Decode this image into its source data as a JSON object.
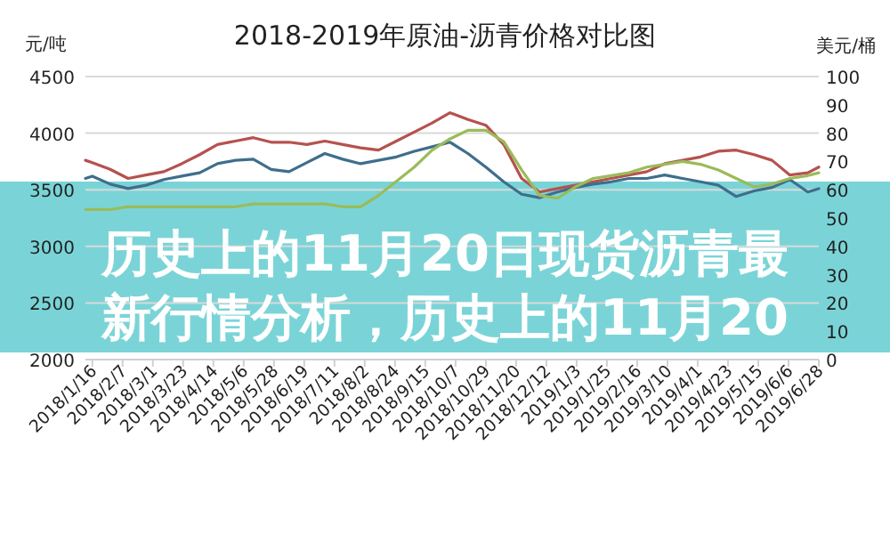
{
  "chart_data": {
    "type": "line",
    "title": "2018-2019年原油-沥青价格对比图",
    "ylabel": "元/吨",
    "y2label": "美元/桶",
    "annotations": [
      "历史上的11月20日现货沥青最新行情分析，历史上的11月20"
    ],
    "x": [
      "2018-01-11",
      "2018-01-16",
      "2018-01-29",
      "2018-02-11",
      "2018-02-24",
      "2018-03-09",
      "2018-03-22",
      "2018-04-04",
      "2018-04-17",
      "2018-04-30",
      "2018-05-13",
      "2018-05-26",
      "2018-06-08",
      "2018-06-21",
      "2018-07-04",
      "2018-07-17",
      "2018-07-30",
      "2018-08-12",
      "2018-08-25",
      "2018-09-07",
      "2018-09-20",
      "2018-10-03",
      "2018-10-16",
      "2018-10-29",
      "2018-11-11",
      "2018-11-24",
      "2018-12-07",
      "2018-12-20",
      "2019-01-02",
      "2019-01-15",
      "2019-01-28",
      "2019-02-10",
      "2019-02-23",
      "2019-03-08",
      "2019-03-21",
      "2019-04-03",
      "2019-04-16",
      "2019-04-29",
      "2019-05-12",
      "2019-05-25",
      "2019-06-07",
      "2019-06-20",
      "2019-06-28"
    ],
    "series": [
      {
        "color": "#b5524f",
        "values": [
          3760,
          3740,
          3680,
          3600,
          3630,
          3660,
          3730,
          3810,
          3900,
          3930,
          3960,
          3920,
          3920,
          3900,
          3930,
          3900,
          3870,
          3850,
          3930,
          4010,
          4090,
          4180,
          4120,
          4070,
          3900,
          3600,
          3480,
          3510,
          3540,
          3570,
          3600,
          3630,
          3660,
          3730,
          3760,
          3790,
          3840,
          3850,
          3810,
          3760,
          3630,
          3650,
          3700
        ]
      },
      {
        "color": "#3f6e8c",
        "values": [
          3600,
          3620,
          3550,
          3510,
          3540,
          3590,
          3620,
          3650,
          3730,
          3760,
          3770,
          3680,
          3660,
          3740,
          3820,
          3770,
          3730,
          3760,
          3790,
          3840,
          3880,
          3920,
          3820,
          3700,
          3570,
          3460,
          3430,
          3480,
          3520,
          3550,
          3570,
          3600,
          3600,
          3630,
          3600,
          3570,
          3540,
          3440,
          3490,
          3520,
          3590,
          3480,
          3510
        ]
      },
      {
        "color": "#9bbb59",
        "axis": "y2",
        "values": [
          53,
          53,
          53,
          54,
          54,
          54,
          54,
          54,
          54,
          54,
          55,
          55,
          55,
          55,
          55,
          54,
          54,
          58,
          63,
          68,
          74,
          78,
          81,
          81,
          77,
          67,
          58,
          57,
          61,
          64,
          65,
          66,
          68,
          69,
          70,
          69,
          67,
          64,
          61,
          62,
          64,
          65,
          66
        ]
      }
    ],
    "xlim": [
      "2018-01-11",
      "2019-06-28"
    ],
    "xticks": [
      {
        "value": "2018-01-16",
        "label": "2018/1/16"
      },
      {
        "value": "2018-02-07",
        "label": "2018/2/7"
      },
      {
        "value": "2018-03-01",
        "label": "2018/3/1"
      },
      {
        "value": "2018-03-23",
        "label": "2018/3/23"
      },
      {
        "value": "2018-04-14",
        "label": "2018/4/14"
      },
      {
        "value": "2018-05-06",
        "label": "2018/5/6"
      },
      {
        "value": "2018-05-28",
        "label": "2018/5/28"
      },
      {
        "value": "2018-06-19",
        "label": "2018/6/19"
      },
      {
        "value": "2018-07-11",
        "label": "2018/7/11"
      },
      {
        "value": "2018-08-02",
        "label": "2018/8/2"
      },
      {
        "value": "2018-08-24",
        "label": "2018/8/24"
      },
      {
        "value": "2018-09-15",
        "label": "2018/9/15"
      },
      {
        "value": "2018-10-07",
        "label": "2018/10/7"
      },
      {
        "value": "2018-10-29",
        "label": "2018/10/29"
      },
      {
        "value": "2018-11-20",
        "label": "2018/11/20"
      },
      {
        "value": "2018-12-12",
        "label": "2018/12/12"
      },
      {
        "value": "2019-01-03",
        "label": "2019/1/3"
      },
      {
        "value": "2019-01-25",
        "label": "2019/1/25"
      },
      {
        "value": "2019-02-16",
        "label": "2019/2/16"
      },
      {
        "value": "2019-03-10",
        "label": "2019/3/10"
      },
      {
        "value": "2019-04-01",
        "label": "2019/4/1"
      },
      {
        "value": "2019-04-23",
        "label": "2019/4/23"
      },
      {
        "value": "2019-05-15",
        "label": "2019/5/15"
      },
      {
        "value": "2019-06-06",
        "label": "2019/6/6"
      },
      {
        "value": "2019-06-28",
        "label": "2019/6/28"
      }
    ],
    "ylim": [
      2000,
      4500
    ],
    "yticks": [
      2000,
      2500,
      3000,
      3500,
      4000,
      4500
    ],
    "y2lim": [
      0,
      100
    ],
    "y2ticks": [
      0,
      10,
      20,
      30,
      40,
      50,
      60,
      70,
      80,
      90,
      100
    ],
    "grid": "y",
    "marker": "none",
    "line_style": "solid"
  }
}
